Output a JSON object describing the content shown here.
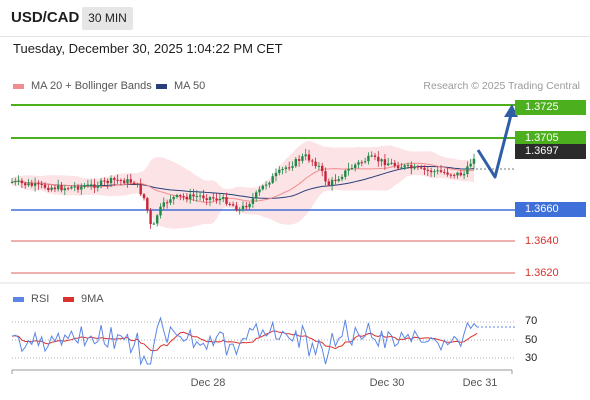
{
  "header": {
    "pair": "USD/CAD",
    "timeframe": "30 MIN",
    "datetime": "Tuesday, December 30, 2025 1:04:22 PM CET"
  },
  "legend": {
    "ma20": "MA 20 + Bollinger Bands",
    "ma50": "MA 50",
    "research": "Research © 2025 Trading Central",
    "rsi": "RSI",
    "ma9": "9MA"
  },
  "colors": {
    "green": "#4caf1e",
    "blue": "#3f6fd8",
    "red": "#d9312c",
    "current": "#2b2b2b",
    "bull": "#1f8a47",
    "bear": "#c7243a",
    "band": "#fbd9dd",
    "ma50": "#283f7a",
    "ma20": "#f28d8d",
    "arrow": "#2e5ea6"
  },
  "levels": [
    {
      "value": "1.3725",
      "kind": "resistance",
      "boxed": true
    },
    {
      "value": "1.3705",
      "kind": "resistance",
      "boxed": true
    },
    {
      "value": "1.3697",
      "kind": "current",
      "boxed": true
    },
    {
      "value": "1.3660",
      "kind": "pivot",
      "boxed": true
    },
    {
      "value": "1.3640",
      "kind": "support",
      "boxed": false
    },
    {
      "value": "1.3620",
      "kind": "support",
      "boxed": false
    }
  ],
  "rsi_levels": [
    "70",
    "50",
    "30"
  ],
  "x_labels": [
    "Dec 28",
    "Dec 30",
    "Dec 31"
  ]
}
